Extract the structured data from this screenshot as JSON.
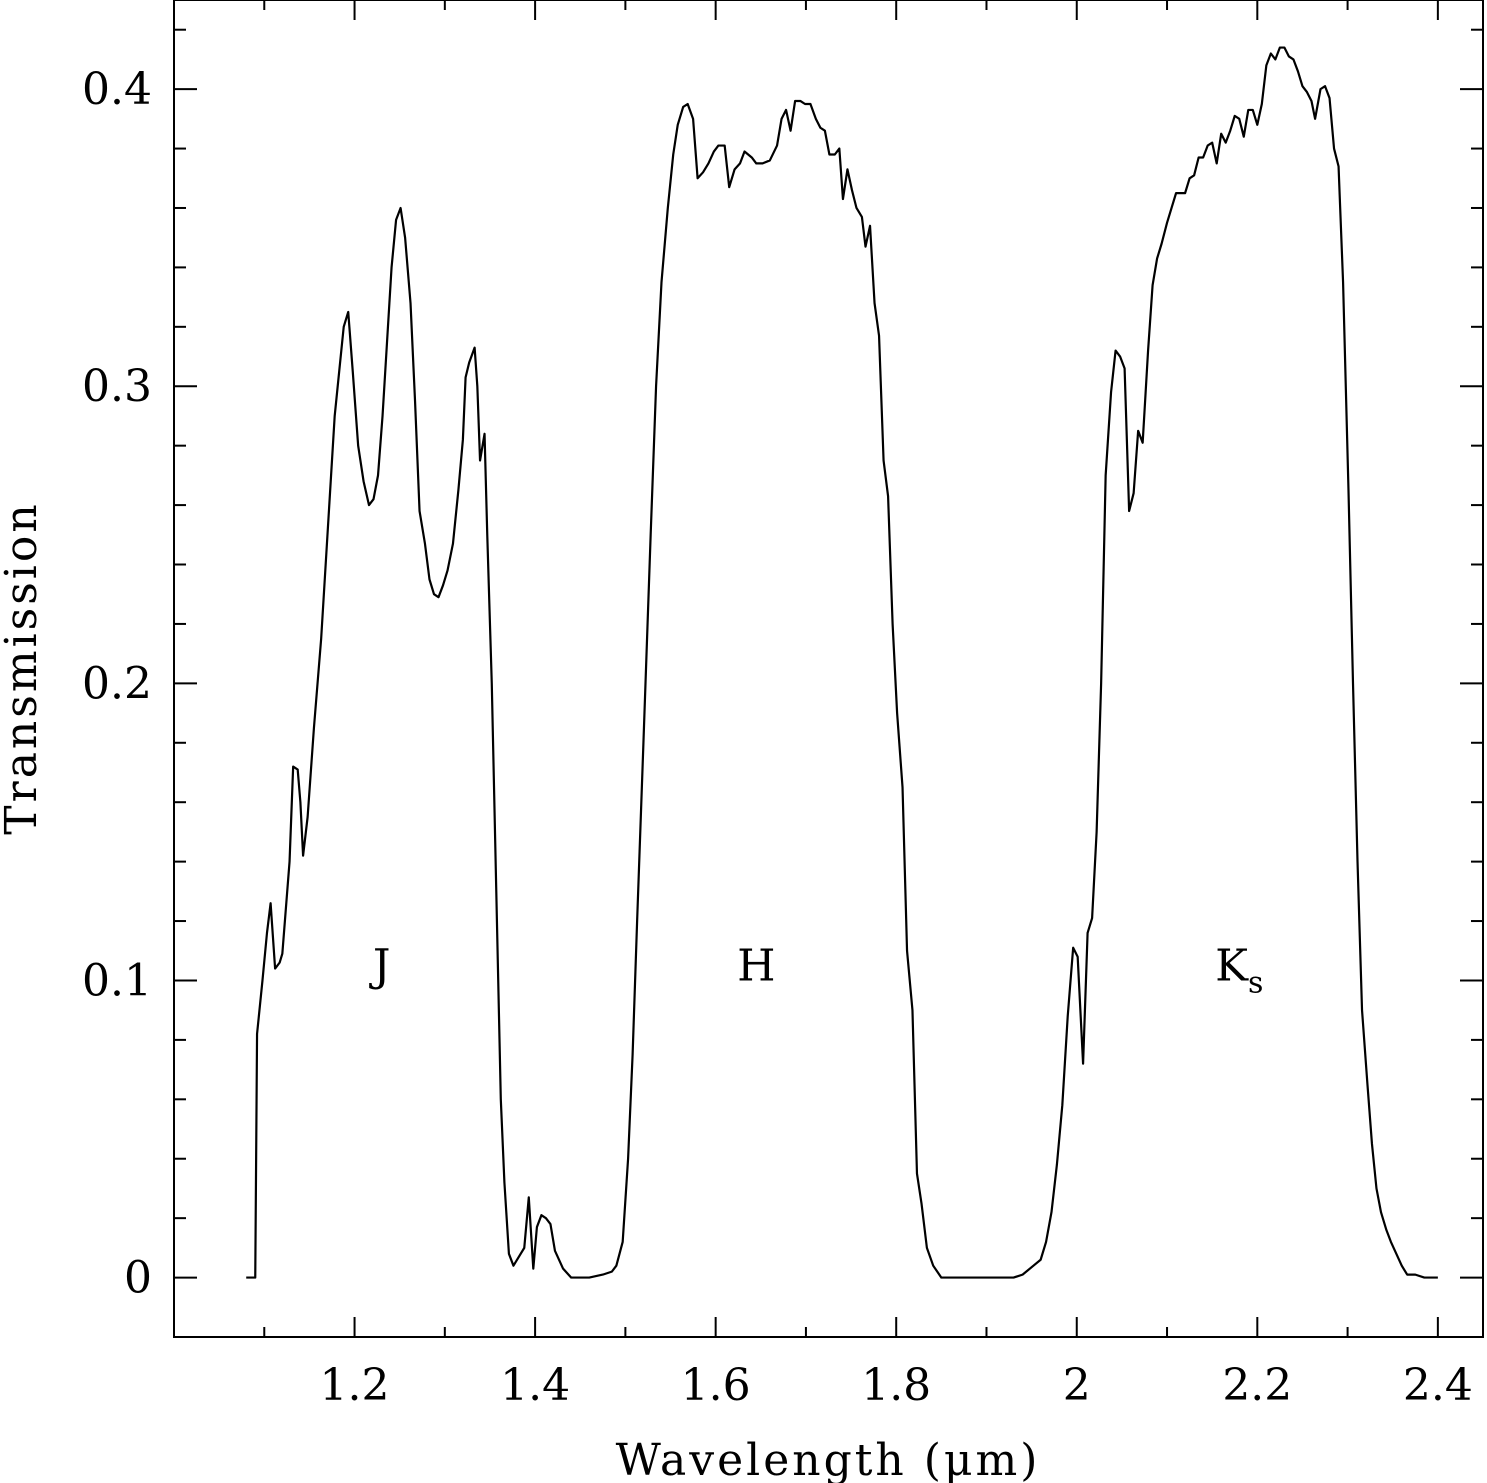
{
  "chart_data": {
    "type": "line",
    "title": "",
    "xlabel": "Wavelength (μm)",
    "ylabel": "Transmission",
    "xlim": [
      1.0,
      2.45
    ],
    "ylim": [
      -0.02,
      0.43
    ],
    "x_ticks": [
      {
        "value": 1.2,
        "label": "1.2"
      },
      {
        "value": 1.4,
        "label": "1.4"
      },
      {
        "value": 1.6,
        "label": "1.6"
      },
      {
        "value": 1.8,
        "label": "1.8"
      },
      {
        "value": 2.0,
        "label": "2"
      },
      {
        "value": 2.2,
        "label": "2.2"
      },
      {
        "value": 2.4,
        "label": "2.4"
      }
    ],
    "x_minor_step": 0.1,
    "y_ticks": [
      {
        "value": 0.0,
        "label": "0"
      },
      {
        "value": 0.1,
        "label": "0.1"
      },
      {
        "value": 0.2,
        "label": "0.2"
      },
      {
        "value": 0.3,
        "label": "0.3"
      },
      {
        "value": 0.4,
        "label": "0.4"
      }
    ],
    "y_minor_step": 0.02,
    "grid": false,
    "annotations": [
      {
        "text": "J",
        "sub": "",
        "x": 1.23,
        "y": 0.1
      },
      {
        "text": "H",
        "sub": "",
        "x": 1.645,
        "y": 0.1
      },
      {
        "text": "K",
        "sub": "s",
        "x": 2.18,
        "y": 0.1
      }
    ],
    "series": [
      {
        "color": "#000000",
        "points": [
          [
            1.08,
            0.0
          ],
          [
            1.09,
            0.0
          ],
          [
            1.092,
            0.082
          ],
          [
            1.098,
            0.1
          ],
          [
            1.103,
            0.116
          ],
          [
            1.107,
            0.126
          ],
          [
            1.112,
            0.104
          ],
          [
            1.117,
            0.106
          ],
          [
            1.12,
            0.109
          ],
          [
            1.128,
            0.14
          ],
          [
            1.132,
            0.172
          ],
          [
            1.137,
            0.171
          ],
          [
            1.14,
            0.16
          ],
          [
            1.143,
            0.142
          ],
          [
            1.148,
            0.155
          ],
          [
            1.155,
            0.185
          ],
          [
            1.163,
            0.215
          ],
          [
            1.17,
            0.25
          ],
          [
            1.178,
            0.29
          ],
          [
            1.183,
            0.305
          ],
          [
            1.188,
            0.32
          ],
          [
            1.193,
            0.325
          ],
          [
            1.198,
            0.305
          ],
          [
            1.204,
            0.28
          ],
          [
            1.21,
            0.268
          ],
          [
            1.216,
            0.26
          ],
          [
            1.221,
            0.262
          ],
          [
            1.226,
            0.27
          ],
          [
            1.231,
            0.29
          ],
          [
            1.236,
            0.315
          ],
          [
            1.241,
            0.34
          ],
          [
            1.246,
            0.356
          ],
          [
            1.251,
            0.36
          ],
          [
            1.256,
            0.35
          ],
          [
            1.262,
            0.328
          ],
          [
            1.267,
            0.295
          ],
          [
            1.272,
            0.258
          ],
          [
            1.278,
            0.247
          ],
          [
            1.283,
            0.235
          ],
          [
            1.288,
            0.23
          ],
          [
            1.293,
            0.229
          ],
          [
            1.298,
            0.233
          ],
          [
            1.303,
            0.238
          ],
          [
            1.309,
            0.247
          ],
          [
            1.315,
            0.265
          ],
          [
            1.32,
            0.282
          ],
          [
            1.323,
            0.303
          ],
          [
            1.327,
            0.308
          ],
          [
            1.333,
            0.313
          ],
          [
            1.336,
            0.3
          ],
          [
            1.339,
            0.275
          ],
          [
            1.344,
            0.284
          ],
          [
            1.347,
            0.25
          ],
          [
            1.352,
            0.2
          ],
          [
            1.357,
            0.13
          ],
          [
            1.362,
            0.06
          ],
          [
            1.366,
            0.032
          ],
          [
            1.371,
            0.008
          ],
          [
            1.376,
            0.004
          ],
          [
            1.384,
            0.008
          ],
          [
            1.388,
            0.01
          ],
          [
            1.393,
            0.027
          ],
          [
            1.398,
            0.003
          ],
          [
            1.402,
            0.017
          ],
          [
            1.407,
            0.021
          ],
          [
            1.412,
            0.02
          ],
          [
            1.417,
            0.018
          ],
          [
            1.422,
            0.009
          ],
          [
            1.431,
            0.003
          ],
          [
            1.44,
            0.0
          ],
          [
            1.46,
            0.0
          ],
          [
            1.475,
            0.001
          ],
          [
            1.485,
            0.002
          ],
          [
            1.49,
            0.004
          ],
          [
            1.497,
            0.012
          ],
          [
            1.503,
            0.04
          ],
          [
            1.508,
            0.075
          ],
          [
            1.513,
            0.12
          ],
          [
            1.52,
            0.18
          ],
          [
            1.528,
            0.25
          ],
          [
            1.534,
            0.3
          ],
          [
            1.54,
            0.335
          ],
          [
            1.547,
            0.36
          ],
          [
            1.553,
            0.378
          ],
          [
            1.558,
            0.388
          ],
          [
            1.564,
            0.394
          ],
          [
            1.569,
            0.395
          ],
          [
            1.575,
            0.39
          ],
          [
            1.58,
            0.37
          ],
          [
            1.586,
            0.372
          ],
          [
            1.592,
            0.375
          ],
          [
            1.598,
            0.379
          ],
          [
            1.603,
            0.381
          ],
          [
            1.61,
            0.381
          ],
          [
            1.615,
            0.367
          ],
          [
            1.621,
            0.373
          ],
          [
            1.627,
            0.375
          ],
          [
            1.632,
            0.379
          ],
          [
            1.64,
            0.377
          ],
          [
            1.645,
            0.375
          ],
          [
            1.652,
            0.375
          ],
          [
            1.66,
            0.376
          ],
          [
            1.668,
            0.381
          ],
          [
            1.673,
            0.39
          ],
          [
            1.678,
            0.393
          ],
          [
            1.683,
            0.386
          ],
          [
            1.688,
            0.396
          ],
          [
            1.694,
            0.396
          ],
          [
            1.699,
            0.395
          ],
          [
            1.705,
            0.395
          ],
          [
            1.711,
            0.39
          ],
          [
            1.716,
            0.387
          ],
          [
            1.721,
            0.386
          ],
          [
            1.726,
            0.378
          ],
          [
            1.732,
            0.378
          ],
          [
            1.737,
            0.38
          ],
          [
            1.741,
            0.363
          ],
          [
            1.746,
            0.373
          ],
          [
            1.751,
            0.366
          ],
          [
            1.756,
            0.36
          ],
          [
            1.762,
            0.357
          ],
          [
            1.766,
            0.347
          ],
          [
            1.771,
            0.354
          ],
          [
            1.776,
            0.328
          ],
          [
            1.781,
            0.317
          ],
          [
            1.786,
            0.275
          ],
          [
            1.791,
            0.263
          ],
          [
            1.796,
            0.22
          ],
          [
            1.801,
            0.19
          ],
          [
            1.807,
            0.165
          ],
          [
            1.812,
            0.11
          ],
          [
            1.818,
            0.09
          ],
          [
            1.823,
            0.035
          ],
          [
            1.828,
            0.025
          ],
          [
            1.834,
            0.01
          ],
          [
            1.841,
            0.004
          ],
          [
            1.85,
            0.0
          ],
          [
            1.87,
            0.0
          ],
          [
            1.9,
            0.0
          ],
          [
            1.91,
            0.0
          ],
          [
            1.93,
            0.0
          ],
          [
            1.94,
            0.001
          ],
          [
            1.952,
            0.004
          ],
          [
            1.96,
            0.006
          ],
          [
            1.966,
            0.012
          ],
          [
            1.972,
            0.022
          ],
          [
            1.978,
            0.038
          ],
          [
            1.984,
            0.058
          ],
          [
            1.99,
            0.088
          ],
          [
            1.996,
            0.111
          ],
          [
            2.001,
            0.108
          ],
          [
            2.007,
            0.072
          ],
          [
            2.012,
            0.116
          ],
          [
            2.017,
            0.121
          ],
          [
            2.022,
            0.15
          ],
          [
            2.027,
            0.2
          ],
          [
            2.032,
            0.27
          ],
          [
            2.038,
            0.298
          ],
          [
            2.043,
            0.312
          ],
          [
            2.048,
            0.31
          ],
          [
            2.053,
            0.306
          ],
          [
            2.058,
            0.258
          ],
          [
            2.063,
            0.264
          ],
          [
            2.068,
            0.285
          ],
          [
            2.073,
            0.281
          ],
          [
            2.079,
            0.312
          ],
          [
            2.084,
            0.334
          ],
          [
            2.089,
            0.343
          ],
          [
            2.094,
            0.348
          ],
          [
            2.1,
            0.355
          ],
          [
            2.105,
            0.36
          ],
          [
            2.11,
            0.365
          ],
          [
            2.115,
            0.365
          ],
          [
            2.12,
            0.365
          ],
          [
            2.125,
            0.37
          ],
          [
            2.13,
            0.371
          ],
          [
            2.135,
            0.377
          ],
          [
            2.14,
            0.377
          ],
          [
            2.145,
            0.381
          ],
          [
            2.15,
            0.382
          ],
          [
            2.155,
            0.375
          ],
          [
            2.16,
            0.385
          ],
          [
            2.165,
            0.382
          ],
          [
            2.17,
            0.386
          ],
          [
            2.175,
            0.391
          ],
          [
            2.18,
            0.39
          ],
          [
            2.185,
            0.384
          ],
          [
            2.19,
            0.393
          ],
          [
            2.195,
            0.393
          ],
          [
            2.2,
            0.388
          ],
          [
            2.205,
            0.395
          ],
          [
            2.21,
            0.408
          ],
          [
            2.215,
            0.412
          ],
          [
            2.22,
            0.41
          ],
          [
            2.225,
            0.414
          ],
          [
            2.23,
            0.414
          ],
          [
            2.235,
            0.411
          ],
          [
            2.24,
            0.41
          ],
          [
            2.245,
            0.406
          ],
          [
            2.25,
            0.401
          ],
          [
            2.255,
            0.399
          ],
          [
            2.26,
            0.396
          ],
          [
            2.264,
            0.39
          ],
          [
            2.27,
            0.4
          ],
          [
            2.275,
            0.401
          ],
          [
            2.28,
            0.397
          ],
          [
            2.285,
            0.38
          ],
          [
            2.29,
            0.374
          ],
          [
            2.295,
            0.335
          ],
          [
            2.301,
            0.265
          ],
          [
            2.306,
            0.2
          ],
          [
            2.311,
            0.14
          ],
          [
            2.316,
            0.09
          ],
          [
            2.322,
            0.065
          ],
          [
            2.327,
            0.045
          ],
          [
            2.332,
            0.03
          ],
          [
            2.337,
            0.022
          ],
          [
            2.343,
            0.016
          ],
          [
            2.348,
            0.012
          ],
          [
            2.354,
            0.008
          ],
          [
            2.36,
            0.004
          ],
          [
            2.366,
            0.001
          ],
          [
            2.375,
            0.001
          ],
          [
            2.385,
            0.0
          ],
          [
            2.4,
            0.0
          ]
        ]
      }
    ]
  }
}
